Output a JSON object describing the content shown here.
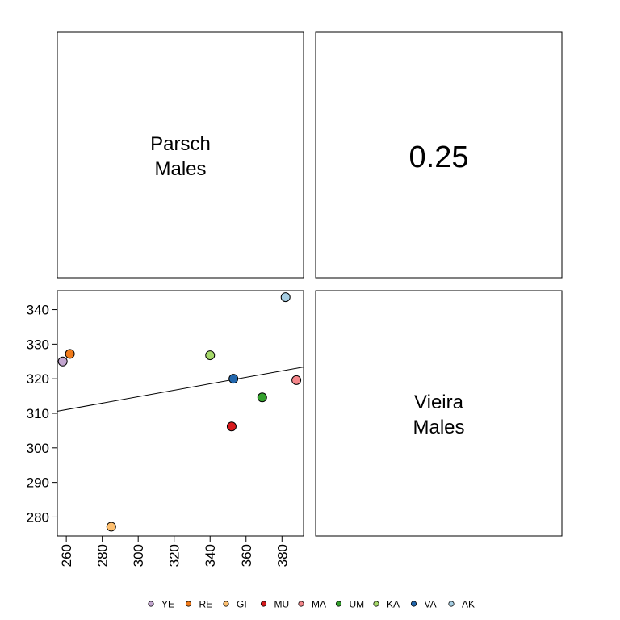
{
  "chart_data": {
    "type": "scatter",
    "diagonal": {
      "top_left": [
        "Parsch",
        "Males"
      ],
      "bottom_right": [
        "Vieira",
        "Males"
      ]
    },
    "correlation_label": "0.25",
    "x_variable": "Parsch Males",
    "y_variable": "Vieira Males",
    "xlim": [
      255,
      392
    ],
    "ylim": [
      274.5,
      345.5
    ],
    "x_ticks": [
      260,
      280,
      300,
      320,
      340,
      360,
      380
    ],
    "y_ticks": [
      280,
      290,
      300,
      310,
      320,
      330,
      340
    ],
    "points": [
      {
        "label": "YE",
        "x": 258,
        "y": 325,
        "color": "#c2a5cf"
      },
      {
        "label": "RE",
        "x": 262,
        "y": 327.2,
        "color": "#f07a1a"
      },
      {
        "label": "GI",
        "x": 285,
        "y": 277.2,
        "color": "#fdbf6f"
      },
      {
        "label": "MU",
        "x": 352,
        "y": 306.2,
        "color": "#d7191c"
      },
      {
        "label": "MA",
        "x": 388,
        "y": 319.6,
        "color": "#f4868a"
      },
      {
        "label": "UM",
        "x": 369,
        "y": 314.6,
        "color": "#33a02c"
      },
      {
        "label": "KA",
        "x": 340,
        "y": 326.8,
        "color": "#a6d96a"
      },
      {
        "label": "VA",
        "x": 353,
        "y": 320,
        "color": "#2166ac"
      },
      {
        "label": "AK",
        "x": 382,
        "y": 343.6,
        "color": "#a6cee3"
      }
    ],
    "fit_line": {
      "x": [
        255,
        392
      ],
      "y": [
        310.6,
        323.4
      ]
    },
    "grid": false,
    "legend_position": "bottom"
  }
}
